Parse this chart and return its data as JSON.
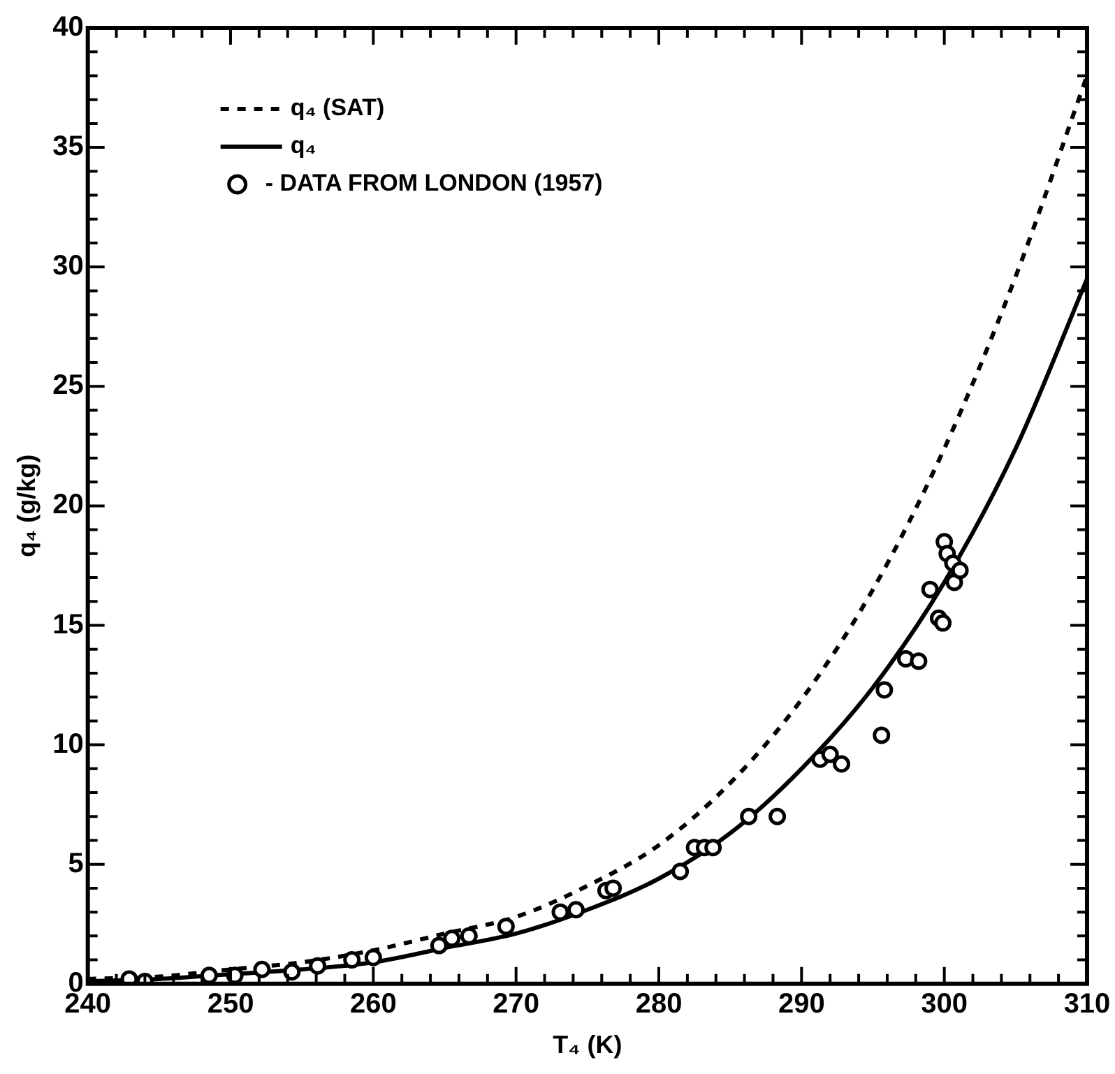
{
  "chart_data": {
    "type": "line",
    "xlabel": "T₄ (K)",
    "ylabel": "q₄ (g/kg)",
    "xlim": [
      240,
      310
    ],
    "ylim": [
      0,
      40
    ],
    "xticks": [
      240,
      {
        "value": 242,
        "label": null
      },
      {
        "value": 244,
        "label": null
      },
      {
        "value": 246,
        "label": null
      },
      {
        "value": 248,
        "label": null
      },
      250,
      {
        "value": 252,
        "label": null
      },
      {
        "value": 254,
        "label": null
      },
      {
        "value": 256,
        "label": null
      },
      {
        "value": 258,
        "label": null
      },
      260,
      {
        "value": 262,
        "label": null
      },
      {
        "value": 264,
        "label": null
      },
      {
        "value": 266,
        "label": null
      },
      {
        "value": 268,
        "label": null
      },
      270,
      {
        "value": 272,
        "label": null
      },
      {
        "value": 274,
        "label": null
      },
      {
        "value": 276,
        "label": null
      },
      {
        "value": 278,
        "label": null
      },
      280,
      {
        "value": 282,
        "label": null
      },
      {
        "value": 284,
        "label": null
      },
      {
        "value": 286,
        "label": null
      },
      {
        "value": 288,
        "label": null
      },
      290,
      {
        "value": 292,
        "label": null
      },
      {
        "value": 294,
        "label": null
      },
      {
        "value": 296,
        "label": null
      },
      {
        "value": 298,
        "label": null
      },
      300,
      {
        "value": 302,
        "label": null
      },
      {
        "value": 304,
        "label": null
      },
      {
        "value": 306,
        "label": null
      },
      {
        "value": 308,
        "label": null
      },
      310
    ],
    "yticks": [
      0,
      {
        "value": 1,
        "label": null
      },
      {
        "value": 2,
        "label": null
      },
      {
        "value": 3,
        "label": null
      },
      {
        "value": 4,
        "label": null
      },
      5,
      {
        "value": 6,
        "label": null
      },
      {
        "value": 7,
        "label": null
      },
      {
        "value": 8,
        "label": null
      },
      {
        "value": 9,
        "label": null
      },
      10,
      {
        "value": 11,
        "label": null
      },
      {
        "value": 12,
        "label": null
      },
      {
        "value": 13,
        "label": null
      },
      {
        "value": 14,
        "label": null
      },
      15,
      {
        "value": 16,
        "label": null
      },
      {
        "value": 17,
        "label": null
      },
      {
        "value": 18,
        "label": null
      },
      {
        "value": 19,
        "label": null
      },
      20,
      {
        "value": 21,
        "label": null
      },
      {
        "value": 22,
        "label": null
      },
      {
        "value": 23,
        "label": null
      },
      {
        "value": 24,
        "label": null
      },
      25,
      {
        "value": 26,
        "label": null
      },
      {
        "value": 27,
        "label": null
      },
      {
        "value": 28,
        "label": null
      },
      {
        "value": 29,
        "label": null
      },
      30,
      {
        "value": 31,
        "label": null
      },
      {
        "value": 32,
        "label": null
      },
      {
        "value": 33,
        "label": null
      },
      {
        "value": 34,
        "label": null
      },
      35,
      {
        "value": 36,
        "label": null
      },
      {
        "value": 37,
        "label": null
      },
      {
        "value": 38,
        "label": null
      },
      {
        "value": 39,
        "label": null
      },
      40
    ],
    "grid": false,
    "legend": "top left",
    "series": [
      {
        "name": "q₄ (SAT)",
        "line_style": "dashed",
        "color": "#000000",
        "x": [
          240,
          245,
          250,
          255,
          260,
          265,
          270,
          275,
          280,
          285,
          290,
          295,
          300,
          305,
          310
        ],
        "values": [
          0.2,
          0.3,
          0.6,
          0.9,
          1.4,
          2.1,
          2.8,
          4.1,
          5.8,
          8.4,
          11.9,
          16.5,
          22.4,
          29.6,
          38
        ]
      },
      {
        "name": "q₄",
        "line_style": "solid",
        "color": "#000000",
        "x": [
          240,
          245,
          250,
          255,
          260,
          265,
          270,
          275,
          280,
          285,
          290,
          295,
          300,
          305,
          310
        ],
        "values": [
          0.1,
          0.2,
          0.4,
          0.6,
          0.9,
          1.5,
          2.1,
          3.1,
          4.4,
          6.3,
          9.0,
          12.4,
          16.8,
          22.4,
          29.5
        ]
      },
      {
        "name": "- DATA FROM LONDON (1957)",
        "type": "scatter",
        "marker": "circle",
        "color": "#000000",
        "x": [
          242.9,
          244,
          248.5,
          250.3,
          252.2,
          254.3,
          256.1,
          258.5,
          260,
          264.6,
          265.5,
          266.7,
          269.3,
          273.1,
          274.2,
          276.3,
          276.8,
          281.5,
          282.5,
          283.2,
          283.8,
          286.3,
          288.3,
          291.3,
          292,
          292.8,
          295.6,
          295.8,
          297.3,
          298.2,
          299,
          299.6,
          299.9,
          300,
          300.2,
          300.6,
          300.7,
          301.1
        ],
        "values": [
          0.2,
          0.1,
          0.35,
          0.35,
          0.6,
          0.5,
          0.75,
          1.0,
          1.1,
          1.6,
          1.9,
          2.0,
          2.4,
          3.0,
          3.1,
          3.9,
          4.0,
          4.7,
          5.7,
          5.7,
          5.7,
          7.0,
          7.0,
          9.4,
          9.6,
          9.2,
          10.4,
          12.3,
          13.6,
          13.5,
          16.5,
          15.3,
          15.1,
          18.5,
          18.0,
          17.6,
          16.8,
          17.3
        ]
      }
    ]
  }
}
